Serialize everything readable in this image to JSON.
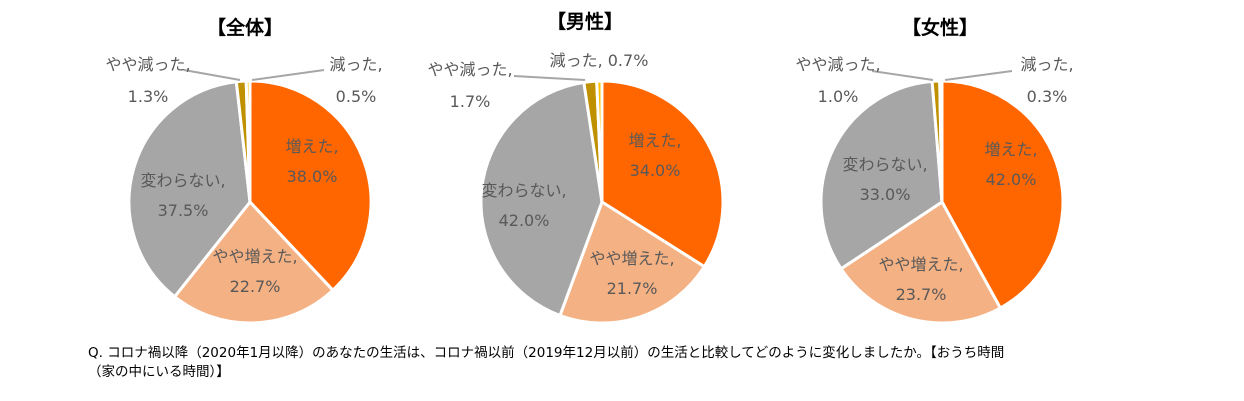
{
  "colors": {
    "increased": "#FF6600",
    "slightly_increased": "#F4B183",
    "unchanged": "#A6A6A6",
    "slightly_decreased": "#BF9000",
    "decreased": "#FFC000",
    "label_text": "#595959",
    "leader_line": "#A6A6A6"
  },
  "chart_data": [
    {
      "type": "pie",
      "title": "【全体】",
      "slices": [
        {
          "name": "増えた",
          "value": 38.0,
          "label": "38.0%",
          "color_key": "increased"
        },
        {
          "name": "やや増えた",
          "value": 22.7,
          "label": "22.7%",
          "color_key": "slightly_increased"
        },
        {
          "name": "変わらない",
          "value": 37.5,
          "label": "37.5%",
          "color_key": "unchanged"
        },
        {
          "name": "やや減った",
          "value": 1.3,
          "label": "1.3%",
          "color_key": "slightly_decreased"
        },
        {
          "name": "減った",
          "value": 0.5,
          "label": "0.5%",
          "color_key": "decreased"
        }
      ]
    },
    {
      "type": "pie",
      "title": "【男性】",
      "slices": [
        {
          "name": "増えた",
          "value": 34.0,
          "label": "34.0%",
          "color_key": "increased"
        },
        {
          "name": "やや増えた",
          "value": 21.7,
          "label": "21.7%",
          "color_key": "slightly_increased"
        },
        {
          "name": "変わらない",
          "value": 42.0,
          "label": "42.0%",
          "color_key": "unchanged"
        },
        {
          "name": "やや減った",
          "value": 1.7,
          "label": "1.7%",
          "color_key": "slightly_decreased"
        },
        {
          "name": "減った",
          "value": 0.7,
          "label": "0.7%",
          "color_key": "decreased"
        }
      ]
    },
    {
      "type": "pie",
      "title": "【女性】",
      "slices": [
        {
          "name": "増えた",
          "value": 42.0,
          "label": "42.0%",
          "color_key": "increased"
        },
        {
          "name": "やや増えた",
          "value": 23.7,
          "label": "23.7%",
          "color_key": "slightly_increased"
        },
        {
          "name": "変わらない",
          "value": 33.0,
          "label": "33.0%",
          "color_key": "unchanged"
        },
        {
          "name": "やや減った",
          "value": 1.0,
          "label": "1.0%",
          "color_key": "slightly_decreased"
        },
        {
          "name": "減った",
          "value": 0.3,
          "label": "0.3%",
          "color_key": "decreased"
        }
      ]
    }
  ],
  "question": {
    "line1": "Q. コロナ禍以降（2020年1月以降）のあなたの生活は、コロナ禍以前（2019年12月以前）の生活と比較してどのように変化しましたか。【おうち時間",
    "line2": "（家の中にいる時間）】"
  }
}
